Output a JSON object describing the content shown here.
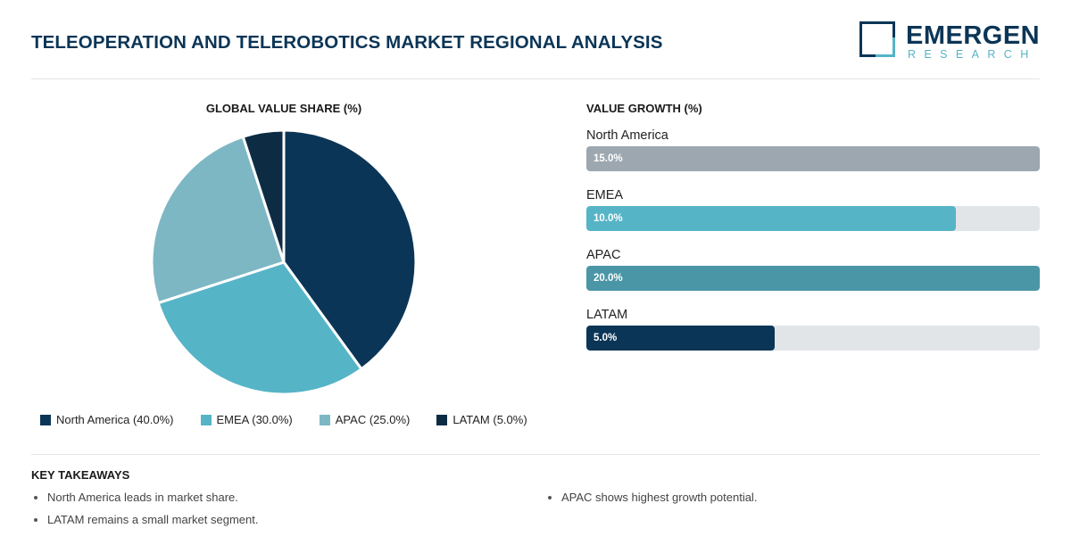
{
  "header": {
    "title": "TELEOPERATION AND TELEROBOTICS MARKET REGIONAL ANALYSIS",
    "logo_name": "EMERGEN",
    "logo_sub": "RESEARCH"
  },
  "colors": {
    "navy": "#0b3556",
    "teal": "#56b4c7",
    "light_teal": "#7db7c4",
    "dark_teal": "#4a96a6",
    "gray": "#9ca7b0",
    "dark_navy": "#0d2c44",
    "track": "#e2e5e8"
  },
  "chart_data": [
    {
      "type": "pie",
      "title": "GLOBAL VALUE SHARE (%)",
      "categories": [
        "North America",
        "EMEA",
        "APAC",
        "LATAM"
      ],
      "values": [
        40.0,
        30.0,
        25.0,
        5.0
      ],
      "colors": [
        "#0b3556",
        "#56b4c7",
        "#7db7c4",
        "#0d2c44"
      ],
      "legend": [
        {
          "label": "North America (40.0%)",
          "color": "#0b3556"
        },
        {
          "label": "EMEA (30.0%)",
          "color": "#56b4c7"
        },
        {
          "label": "APAC (25.0%)",
          "color": "#7db7c4"
        },
        {
          "label": "LATAM (5.0%)",
          "color": "#0d2c44"
        }
      ],
      "legend_position": "bottom"
    },
    {
      "type": "bar",
      "orientation": "horizontal",
      "title": "VALUE GROWTH (%)",
      "categories": [
        "North America",
        "EMEA",
        "APAC",
        "LATAM"
      ],
      "values": [
        15.0,
        10.0,
        20.0,
        5.0
      ],
      "value_labels": [
        "15.0%",
        "10.0%",
        "20.0%",
        "5.0%"
      ],
      "fill_fraction": [
        1.0,
        0.815,
        1.0,
        0.415
      ],
      "colors": [
        "#9ca7b0",
        "#56b4c7",
        "#4a96a6",
        "#0b3556"
      ]
    }
  ],
  "takeaways": {
    "title": "KEY TAKEAWAYS",
    "left": [
      "North America leads in market share.",
      "LATAM remains a small market segment."
    ],
    "right": [
      "APAC shows highest growth potential."
    ]
  }
}
